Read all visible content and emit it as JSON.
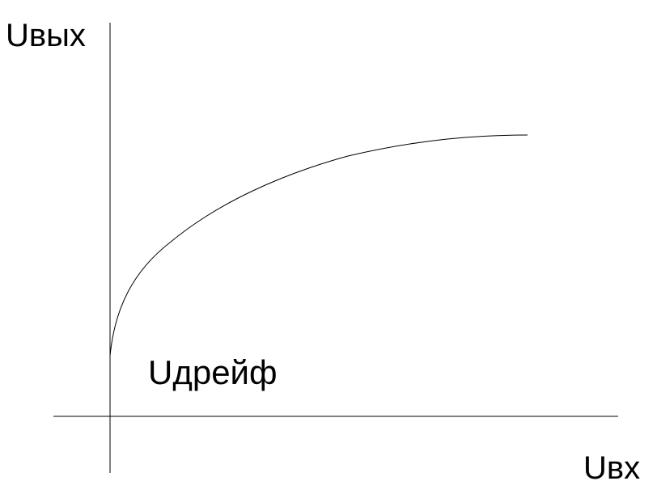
{
  "labels": {
    "y_axis": "Uвых",
    "x_axis": "Uвх",
    "annotation": "Uдрейф"
  }
}
